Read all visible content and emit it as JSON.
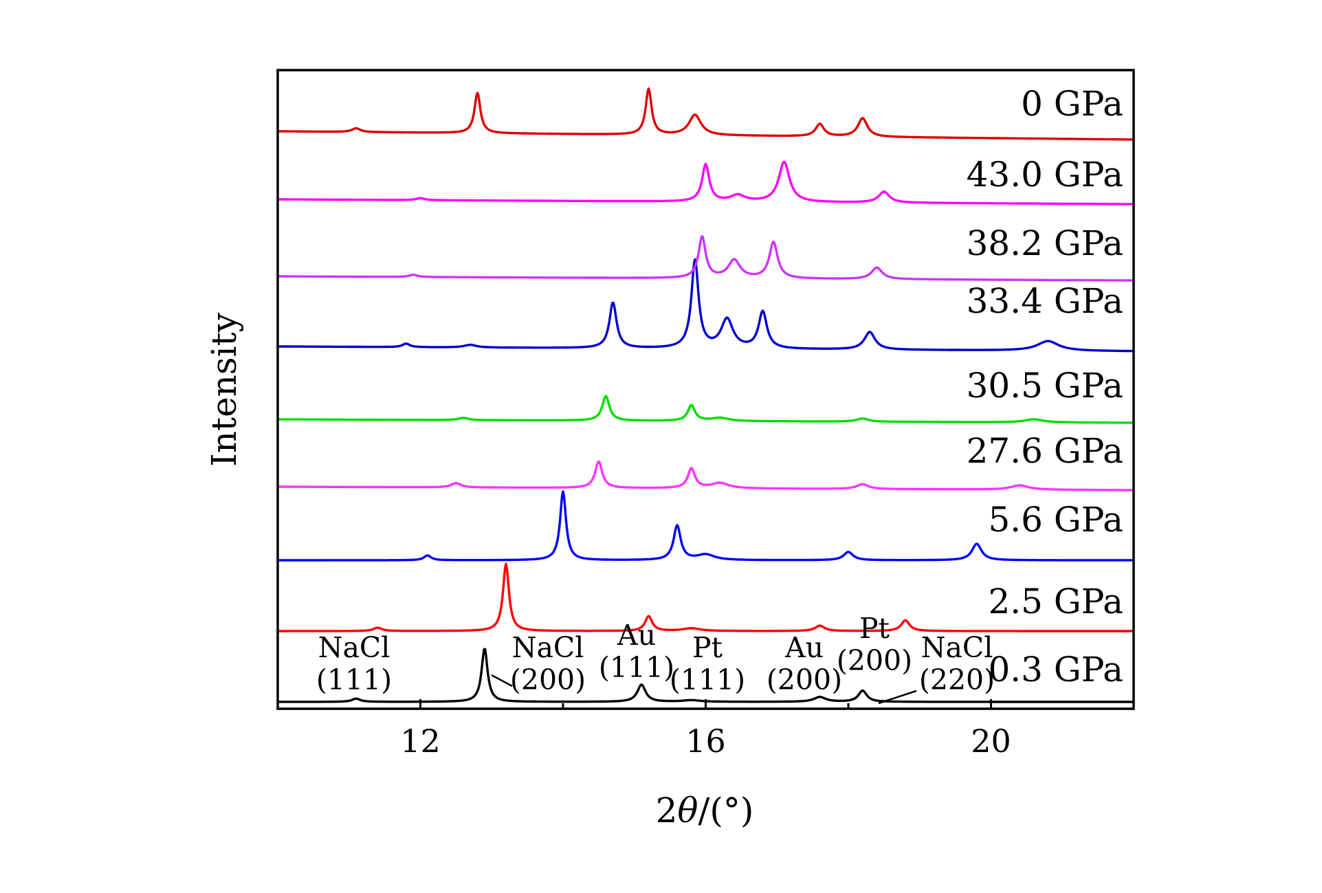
{
  "chart_data": {
    "type": "line",
    "title": "",
    "xlabel_prefix": "2",
    "xlabel_symbol": "θ",
    "xlabel_suffix": "/(°)",
    "ylabel": "Intensity",
    "xlim": [
      10,
      22
    ],
    "xticks": [
      12,
      16,
      20
    ],
    "minor_xticks": [
      14,
      18
    ],
    "yticks": [],
    "grid": false,
    "legend": "labels at right end of each trace",
    "series": [
      {
        "name": "0.3 GPa",
        "color": "#000000",
        "peaks": [
          [
            11.1,
            0.06,
            0.07
          ],
          [
            12.9,
            1.0,
            0.05
          ],
          [
            15.1,
            0.32,
            0.07
          ],
          [
            15.8,
            0.03,
            0.15
          ],
          [
            17.6,
            0.09,
            0.1
          ],
          [
            18.2,
            0.21,
            0.07
          ]
        ]
      },
      {
        "name": "2.5 GPa",
        "color": "#ff0000",
        "peaks": [
          [
            11.4,
            0.05,
            0.07
          ],
          [
            13.2,
            1.0,
            0.05
          ],
          [
            15.2,
            0.22,
            0.06
          ],
          [
            15.8,
            0.04,
            0.15
          ],
          [
            17.6,
            0.08,
            0.08
          ],
          [
            18.8,
            0.16,
            0.07
          ]
        ]
      },
      {
        "name": "5.6 GPa",
        "color": "#0000ff",
        "peaks": [
          [
            12.1,
            0.07,
            0.06
          ],
          [
            14.0,
            1.0,
            0.05
          ],
          [
            15.6,
            0.5,
            0.06
          ],
          [
            16.0,
            0.08,
            0.15
          ],
          [
            18.0,
            0.12,
            0.08
          ],
          [
            19.8,
            0.24,
            0.08
          ]
        ]
      },
      {
        "name": "27.6 GPa",
        "color": "#ff33ff",
        "peaks": [
          [
            12.5,
            0.09,
            0.08
          ],
          [
            14.5,
            0.55,
            0.06
          ],
          [
            15.8,
            0.41,
            0.06
          ],
          [
            16.2,
            0.11,
            0.15
          ],
          [
            18.2,
            0.1,
            0.1
          ],
          [
            20.4,
            0.09,
            0.15
          ]
        ]
      },
      {
        "name": "30.5 GPa",
        "color": "#00dd00",
        "peaks": [
          [
            12.6,
            0.05,
            0.08
          ],
          [
            14.6,
            0.55,
            0.06
          ],
          [
            15.8,
            0.35,
            0.06
          ],
          [
            16.2,
            0.07,
            0.15
          ],
          [
            18.2,
            0.07,
            0.1
          ],
          [
            20.6,
            0.07,
            0.15
          ]
        ]
      },
      {
        "name": "33.4 GPa",
        "color": "#0000cc",
        "peaks": [
          [
            11.8,
            0.04,
            0.06
          ],
          [
            12.7,
            0.03,
            0.1
          ],
          [
            14.7,
            0.52,
            0.06
          ],
          [
            15.85,
            1.0,
            0.06
          ],
          [
            16.3,
            0.33,
            0.1
          ],
          [
            16.8,
            0.42,
            0.07
          ],
          [
            18.3,
            0.2,
            0.09
          ],
          [
            20.8,
            0.11,
            0.18
          ]
        ]
      },
      {
        "name": "38.2 GPa",
        "color": "#cc33ff",
        "peaks": [
          [
            11.9,
            0.04,
            0.07
          ],
          [
            15.95,
            0.75,
            0.06
          ],
          [
            16.4,
            0.33,
            0.1
          ],
          [
            16.95,
            0.66,
            0.07
          ],
          [
            18.4,
            0.21,
            0.09
          ]
        ]
      },
      {
        "name": "43.0 GPa",
        "color": "#ff00ff",
        "peaks": [
          [
            12.0,
            0.04,
            0.07
          ],
          [
            16.0,
            0.75,
            0.06
          ],
          [
            16.45,
            0.13,
            0.12
          ],
          [
            17.1,
            0.81,
            0.09
          ],
          [
            18.5,
            0.22,
            0.09
          ]
        ]
      },
      {
        "name": "0 GPa",
        "color": "#dd0000",
        "peaks": [
          [
            11.1,
            0.06,
            0.07
          ],
          [
            12.8,
            0.65,
            0.05
          ],
          [
            15.2,
            0.74,
            0.05
          ],
          [
            15.85,
            0.33,
            0.1
          ],
          [
            17.6,
            0.2,
            0.07
          ],
          [
            18.2,
            0.3,
            0.08
          ]
        ]
      }
    ],
    "annotations": [
      {
        "line1": "NaCl",
        "line2": "(111)",
        "x": 11.1
      },
      {
        "line1": "NaCl",
        "line2": "(200)",
        "x": 12.9
      },
      {
        "line1": "Au",
        "line2": "(111)",
        "x": 15.1
      },
      {
        "line1": "Pt",
        "line2": "(111)",
        "x": 15.8
      },
      {
        "line1": "Au",
        "line2": "(200)",
        "x": 17.6
      },
      {
        "line1": "Pt",
        "line2": "(200)",
        "x": 18.2
      },
      {
        "line1": "NaCl",
        "line2": "(220)",
        "x": 18.9
      }
    ]
  }
}
